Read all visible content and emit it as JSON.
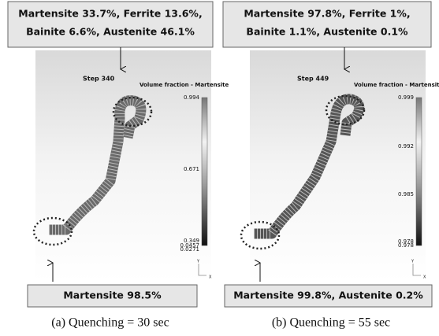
{
  "panels": [
    {
      "top_box": [
        "Martensite 33.7%, Ferrite 13.6%,",
        "Bainite 6.6%, Austenite 46.1%"
      ],
      "step": "Step  340",
      "legend_title": "Volume fraction - Martensite",
      "colorbar_labels": [
        "0.994",
        "0.671",
        "0.349",
        "0.0457",
        "0.0271"
      ],
      "axis_y": "Y",
      "axis_x": "X",
      "bottom_box": "Martensite 98.5%",
      "caption": "(a) Quenching = 30 sec"
    },
    {
      "top_box": [
        "Martensite 97.8%, Ferrite 1%,",
        "Bainite 1.1%, Austenite 0.1%"
      ],
      "step": "Step  449",
      "legend_title": "Volume fraction - Martensite",
      "colorbar_labels": [
        "0.999",
        "0.992",
        "0.985",
        "0.978",
        "0.978"
      ],
      "axis_y": "Y",
      "axis_x": "X",
      "bottom_box": "Martensite 99.8%, Austenite 0.2%",
      "caption": "(b) Quenching = 55 sec"
    }
  ]
}
